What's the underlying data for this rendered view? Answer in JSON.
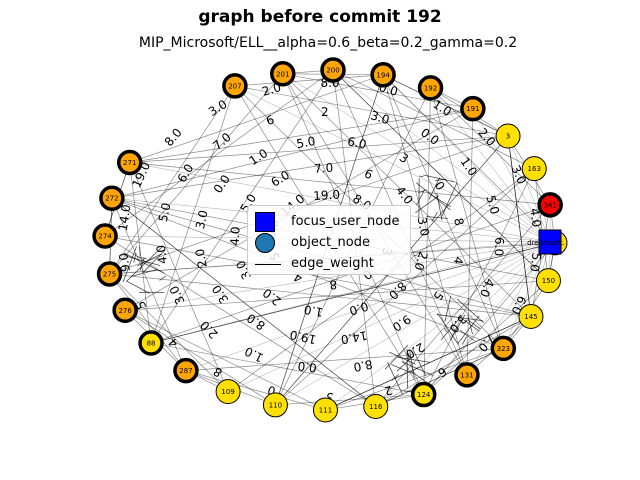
{
  "title": "graph before commit 192",
  "subtitle": "MIP_Microsoft/ELL__alpha=0.6_beta=0.2_gamma=0.2",
  "legend": {
    "focus_user_node": "focus_user_node",
    "object_node": "object_node",
    "edge_weight": "edge_weight"
  },
  "colors": {
    "orange_node": "#ffa500",
    "yellow_node": "#ffe000",
    "red_node": "#ff0000",
    "focus_node": "#0000ff",
    "object_node": "#1f77b4"
  },
  "focus_user": {
    "label": "dreamsoft."
  },
  "nodes": [
    {
      "label": "207",
      "color": "orange",
      "bold": true
    },
    {
      "label": "201",
      "color": "orange",
      "bold": true
    },
    {
      "label": "200",
      "color": "orange",
      "bold": true
    },
    {
      "label": "194",
      "color": "orange",
      "bold": true
    },
    {
      "label": "192",
      "color": "orange",
      "bold": true
    },
    {
      "label": "191",
      "color": "orange",
      "bold": true
    },
    {
      "label": "3",
      "color": "yellow",
      "bold": false
    },
    {
      "label": "163",
      "color": "yellow",
      "bold": false
    },
    {
      "label": "341",
      "color": "red",
      "bold": true
    },
    {
      "label": "151",
      "color": "yellow",
      "bold": false
    },
    {
      "label": "150",
      "color": "yellow",
      "bold": false
    },
    {
      "label": "145",
      "color": "yellow",
      "bold": false
    },
    {
      "label": "323",
      "color": "orange",
      "bold": true
    },
    {
      "label": "131",
      "color": "orange",
      "bold": true
    },
    {
      "label": "124",
      "color": "yellow",
      "bold": true
    },
    {
      "label": "116",
      "color": "yellow",
      "bold": false
    },
    {
      "label": "111",
      "color": "yellow",
      "bold": false
    },
    {
      "label": "110",
      "color": "yellow",
      "bold": false
    },
    {
      "label": "109",
      "color": "yellow",
      "bold": false
    },
    {
      "label": "287",
      "color": "orange",
      "bold": true
    },
    {
      "label": "88",
      "color": "yellow",
      "bold": true
    },
    {
      "label": "276",
      "color": "orange",
      "bold": true
    },
    {
      "label": "275",
      "color": "orange",
      "bold": true
    },
    {
      "label": "274",
      "color": "orange",
      "bold": true
    },
    {
      "label": "272",
      "color": "orange",
      "bold": true
    },
    {
      "label": "271",
      "color": "orange",
      "bold": true
    }
  ],
  "edge_labels": [
    "8.0",
    "0.0",
    "1.0",
    "2.0",
    "3.0",
    "4.0",
    "5.0",
    "6.0",
    "7.0",
    "6",
    "2",
    "3",
    "0",
    "8",
    "4",
    "5",
    "9.0",
    "14.0",
    "19.0",
    "8.0",
    "3.0",
    "2.0",
    "3.0",
    "0.0",
    "1.0",
    "5.0",
    "6.0",
    "4.0",
    "3.0",
    "2.0"
  ]
}
